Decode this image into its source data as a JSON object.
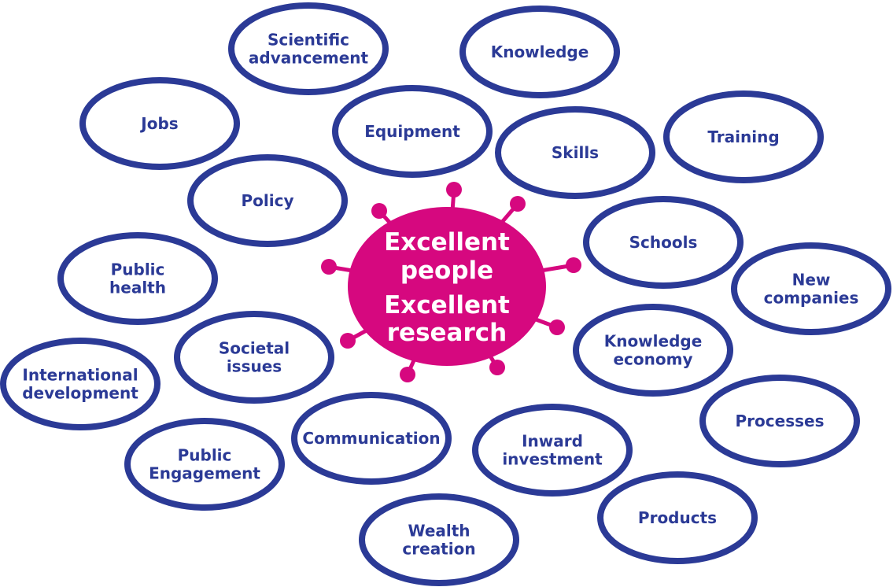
{
  "center": {
    "lines": [
      "Excellent",
      "people",
      "Excellent",
      "research"
    ],
    "fill_color": "#d6087f"
  },
  "bubble_style": {
    "stroke_color": "#2b3a96",
    "fill_color": "#ffffff",
    "text_color": "#2b3a96"
  },
  "bubbles": [
    {
      "id": "scientific-advancement",
      "lines": [
        "Scientific",
        "advancement"
      ]
    },
    {
      "id": "knowledge",
      "lines": [
        "Knowledge"
      ]
    },
    {
      "id": "jobs",
      "lines": [
        "Jobs"
      ]
    },
    {
      "id": "equipment",
      "lines": [
        "Equipment"
      ]
    },
    {
      "id": "skills",
      "lines": [
        "Skills"
      ]
    },
    {
      "id": "training",
      "lines": [
        "Training"
      ]
    },
    {
      "id": "policy",
      "lines": [
        "Policy"
      ]
    },
    {
      "id": "schools",
      "lines": [
        "Schools"
      ]
    },
    {
      "id": "public-health",
      "lines": [
        "Public",
        "health"
      ]
    },
    {
      "id": "new-companies",
      "lines": [
        "New",
        "companies"
      ]
    },
    {
      "id": "societal-issues",
      "lines": [
        "Societal",
        "issues"
      ]
    },
    {
      "id": "knowledge-economy",
      "lines": [
        "Knowledge",
        "economy"
      ]
    },
    {
      "id": "international-development",
      "lines": [
        "International",
        "development"
      ]
    },
    {
      "id": "communication",
      "lines": [
        "Communication"
      ]
    },
    {
      "id": "inward-investment",
      "lines": [
        "Inward",
        "investment"
      ]
    },
    {
      "id": "processes",
      "lines": [
        "Processes"
      ]
    },
    {
      "id": "public-engagement",
      "lines": [
        "Public",
        "Engagement"
      ]
    },
    {
      "id": "wealth-creation",
      "lines": [
        "Wealth",
        "creation"
      ]
    },
    {
      "id": "products",
      "lines": [
        "Products"
      ]
    }
  ]
}
